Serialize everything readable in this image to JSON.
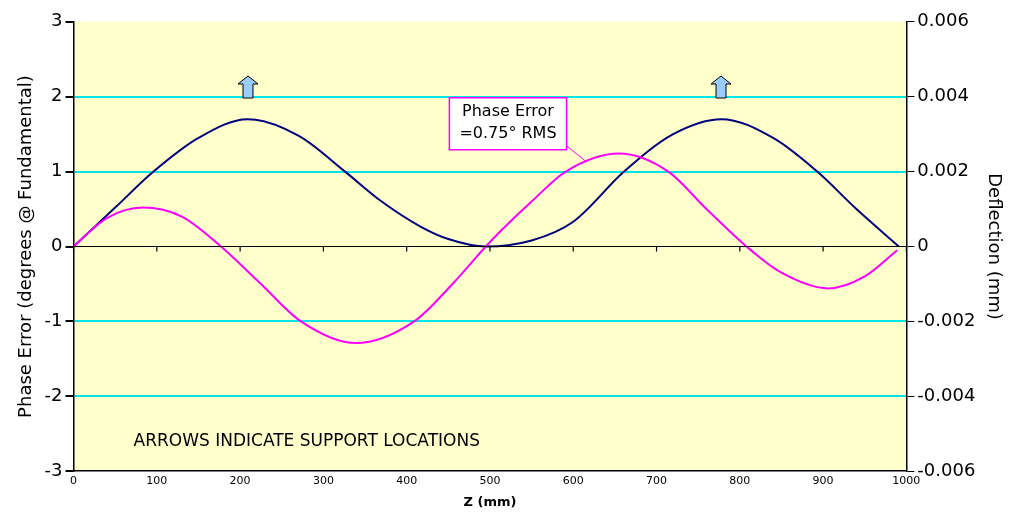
{
  "chart_data": {
    "type": "line",
    "xlabel": "Z (mm)",
    "ylabel": "Phase Error (degrees @ Fundamental)",
    "y2label": "Deflection (mm)",
    "xlim": [
      0,
      1000
    ],
    "xticks": [
      0,
      100,
      200,
      300,
      400,
      500,
      600,
      700,
      800,
      900,
      1000
    ],
    "ylim": [
      -3,
      3
    ],
    "yticks": [
      -3,
      -2,
      -1,
      0,
      1,
      2,
      3
    ],
    "y2lim": [
      -0.006,
      0.006
    ],
    "y2ticks": [
      -0.006,
      -0.004,
      -0.002,
      0,
      0.002,
      0.004,
      0.006
    ],
    "grid": "y",
    "legend": false,
    "marker": "none",
    "line_style": "solid",
    "series": [
      {
        "color": "#ff00ff",
        "x": [
          0,
          40,
          83,
          130,
          177,
          225,
          273,
          339,
          409,
          455,
          495,
          514,
          550,
          591,
          655,
          714,
          760,
          808,
          850,
          906,
          950,
          989
        ],
        "values": [
          0,
          0.38,
          0.52,
          0.4,
          0,
          -0.5,
          -1.0,
          -1.29,
          -1.0,
          -0.5,
          0,
          0.22,
          0.6,
          1.0,
          1.24,
          1.0,
          0.5,
          0,
          -0.35,
          -0.56,
          -0.4,
          -0.05
        ]
      },
      {
        "color": "#000080",
        "axis": "y2",
        "x": [
          0,
          50,
          96,
          150,
          209,
          270,
          326,
          370,
          416,
          450,
          495,
          550,
          600,
          661,
          720,
          778,
          840,
          893,
          940,
          991
        ],
        "values": [
          0,
          0.00104,
          0.002,
          0.0029,
          0.0034,
          0.00296,
          0.002,
          0.0012,
          0.00054,
          0.0002,
          0,
          0.00016,
          0.00066,
          0.002,
          0.003,
          0.0034,
          0.0029,
          0.002,
          0.001,
          0
        ]
      }
    ],
    "annotations": [
      {
        "text": "Phase Error\n=0.75° RMS",
        "x": 616,
        "y": 1.13
      },
      "ARROWS INDICATE SUPPORT LOCATIONS"
    ]
  }
}
